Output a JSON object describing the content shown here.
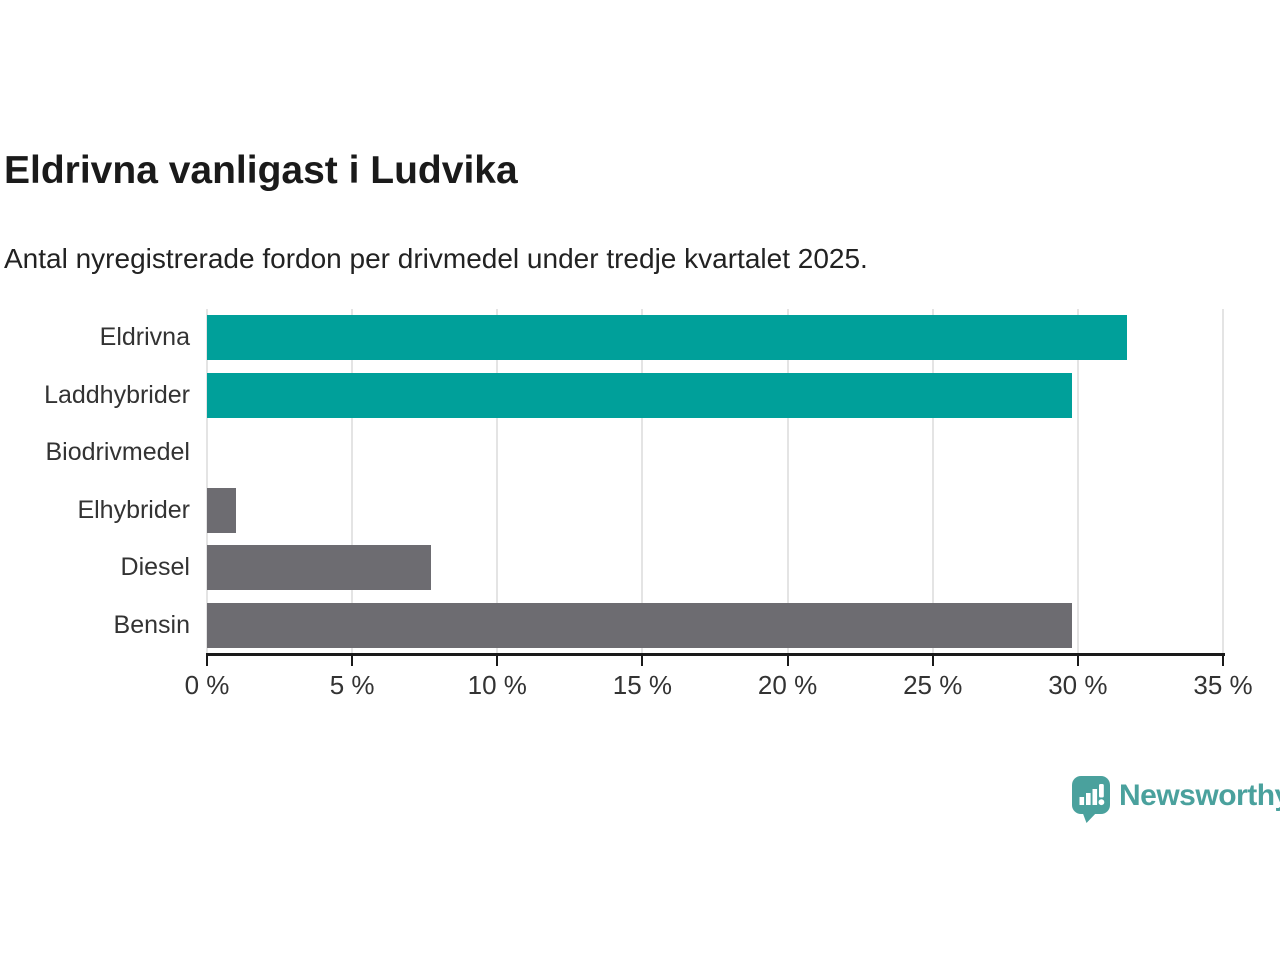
{
  "header": {
    "title": "Eldrivna vanligast i Ludvika",
    "subtitle": "Antal nyregistrerade fordon per drivmedel under tredje kvartalet 2025."
  },
  "chart_data": {
    "type": "bar",
    "orientation": "horizontal",
    "title": "Eldrivna vanligast i Ludvika",
    "subtitle": "Antal nyregistrerade fordon per drivmedel under tredje kvartalet 2025.",
    "categories": [
      "Eldrivna",
      "Laddhybrider",
      "Biodrivmedel",
      "Elhybrider",
      "Diesel",
      "Bensin"
    ],
    "values": [
      31.7,
      29.8,
      0,
      1.0,
      7.7,
      29.8
    ],
    "unit": "%",
    "xlim": [
      0,
      35
    ],
    "x_tick_values": [
      0,
      5,
      10,
      15,
      20,
      25,
      30,
      35
    ],
    "x_tick_labels": [
      "0 %",
      "5 %",
      "10 %",
      "15 %",
      "20 %",
      "25 %",
      "30 %",
      "35 %"
    ],
    "bar_colors": [
      "#00a09a",
      "#00a09a",
      "#6d6c71",
      "#6d6c71",
      "#6d6c71",
      "#6d6c71"
    ],
    "grid": true,
    "gridline_color": "#e4e4e4",
    "legend": "none"
  },
  "branding": {
    "name": "Newsworthy",
    "logo_icon": "newsworthy-bar-chart-bubble-icon",
    "color": "#4aa19d"
  },
  "colors": {
    "accent_teal": "#00a09a",
    "neutral_gray": "#6d6c71",
    "title_text": "#1a1a1a",
    "label_text": "#333333",
    "axis": "#1a1a1a",
    "gridline": "#e4e4e4",
    "brand": "#4aa19d",
    "background": "#ffffff"
  }
}
